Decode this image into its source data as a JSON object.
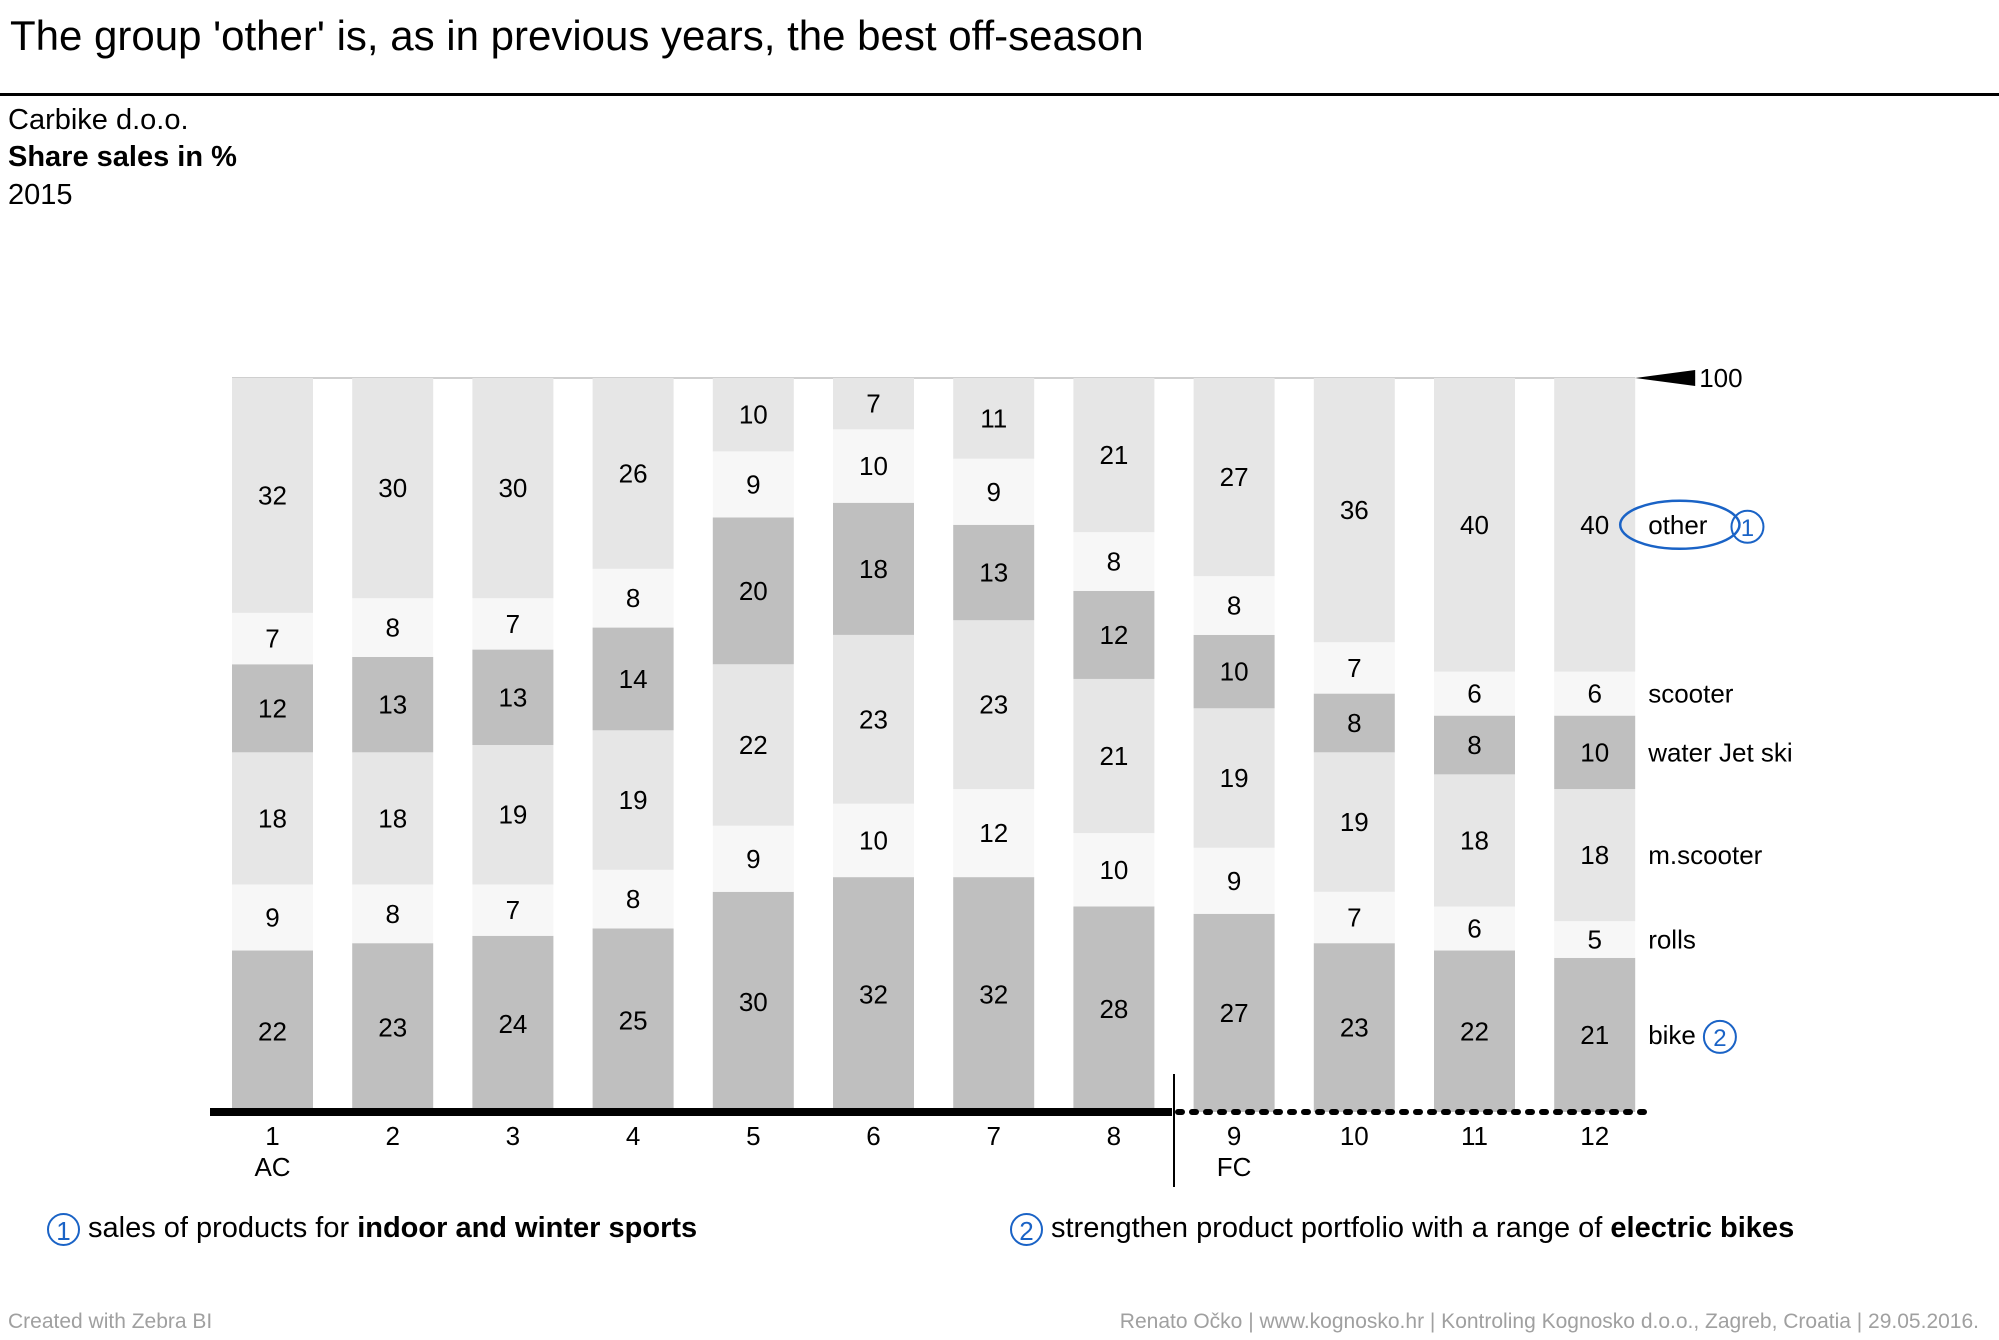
{
  "title": "The group 'other' is, as in previous years, the best off-season",
  "company": "Carbike d.o.o.",
  "measure": "Share sales in %",
  "year": "2015",
  "chart_data": {
    "type": "bar",
    "stacked": true,
    "categories": [
      "1",
      "2",
      "3",
      "4",
      "5",
      "6",
      "7",
      "8",
      "9",
      "10",
      "11",
      "12"
    ],
    "scenario_labels": [
      {
        "category": "1",
        "label": "AC"
      },
      {
        "category": "9",
        "label": "FC"
      }
    ],
    "series": [
      {
        "name": "bike",
        "values": [
          22,
          23,
          24,
          25,
          30,
          32,
          32,
          28,
          27,
          23,
          22,
          21
        ],
        "color": "#bfbfbf"
      },
      {
        "name": "rolls",
        "values": [
          9,
          8,
          7,
          8,
          9,
          10,
          12,
          10,
          9,
          7,
          6,
          5
        ],
        "color": "#f7f7f7"
      },
      {
        "name": "m.scooter",
        "values": [
          18,
          18,
          19,
          19,
          22,
          23,
          23,
          21,
          19,
          19,
          18,
          18
        ],
        "color": "#e6e6e6"
      },
      {
        "name": "water Jet ski",
        "values": [
          12,
          13,
          13,
          14,
          20,
          18,
          13,
          12,
          10,
          8,
          8,
          10
        ],
        "color": "#bfbfbf"
      },
      {
        "name": "scooter",
        "values": [
          7,
          8,
          7,
          8,
          9,
          10,
          9,
          8,
          8,
          7,
          6,
          6
        ],
        "color": "#f7f7f7"
      },
      {
        "name": "other",
        "values": [
          32,
          30,
          30,
          26,
          10,
          7,
          11,
          21,
          27,
          36,
          40,
          40
        ],
        "color": "#e6e6e6"
      }
    ],
    "ylim": [
      0,
      100
    ],
    "reference_marker": "100",
    "series_badges": [
      {
        "series": "other",
        "badge": "1"
      },
      {
        "series": "bike",
        "badge": "2"
      }
    ],
    "grid": false,
    "legend": "right"
  },
  "notes": [
    {
      "badge": "1",
      "text": "sales of products for ",
      "bold": "indoor and winter sports"
    },
    {
      "badge": "2",
      "text": "strengthen product portfolio with a range of ",
      "bold": "electric bikes"
    }
  ],
  "footer": {
    "left": "Created with Zebra BI",
    "right": "Renato Očko | www.kognosko.hr | Kontroling Kognosko d.o.o., Zagreb, Croatia | 29.05.2016."
  },
  "colors": {
    "accent": "#1a63c6",
    "footer_text": "#a0a0a0"
  }
}
